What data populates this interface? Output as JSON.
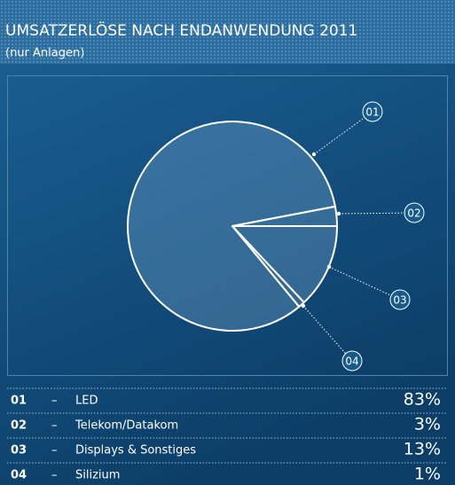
{
  "chart_data": {
    "type": "pie",
    "title": "UMSATZERLÖSE NACH ENDANWENDUNG 2011",
    "subtitle": "(nur Anlagen)",
    "codes": [
      "01",
      "02",
      "03",
      "04"
    ],
    "separator": "–",
    "categories": [
      "LED",
      "Telekom/Datakom",
      "Displays & Sonstiges",
      "Silizium"
    ],
    "values": [
      83,
      3,
      13,
      1
    ],
    "value_labels": [
      "83%",
      "3%",
      "13%",
      "1%"
    ]
  }
}
